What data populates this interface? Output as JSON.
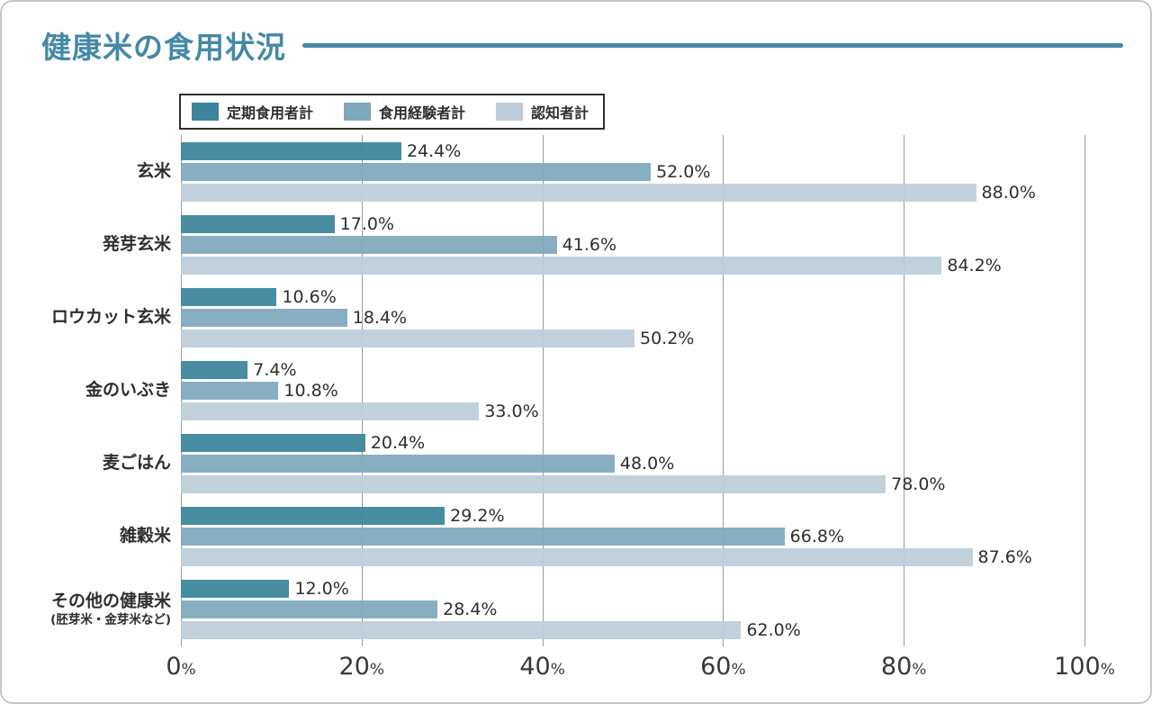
{
  "title": "健康米の食用状況",
  "legend": [
    {
      "label": "定期食用者計",
      "color": "#3b849b"
    },
    {
      "label": "食用経験者計",
      "color": "#7fa8bd"
    },
    {
      "label": "認知者計",
      "color": "#bccdd9"
    }
  ],
  "colors": {
    "accent": "#4489a6",
    "grid": "#9b9b9b",
    "text": "#2e2e2e"
  },
  "chart_data": {
    "type": "bar",
    "orientation": "horizontal",
    "title": "健康米の食用状況",
    "categories": [
      {
        "label": "玄米",
        "note": ""
      },
      {
        "label": "発芽玄米",
        "note": ""
      },
      {
        "label": "ロウカット玄米",
        "note": ""
      },
      {
        "label": "金のいぶき",
        "note": ""
      },
      {
        "label": "麦ごはん",
        "note": ""
      },
      {
        "label": "雑穀米",
        "note": ""
      },
      {
        "label": "その他の健康米",
        "note": "(胚芽米・金芽米など)"
      }
    ],
    "series": [
      {
        "name": "定期食用者計",
        "color": "#3b849b",
        "values": [
          24.4,
          17.0,
          10.6,
          7.4,
          20.4,
          29.2,
          12.0
        ]
      },
      {
        "name": "食用経験者計",
        "color": "#7fa8bd",
        "values": [
          52.0,
          41.6,
          18.4,
          10.8,
          48.0,
          66.8,
          28.4
        ]
      },
      {
        "name": "認知者計",
        "color": "#bccdd9",
        "values": [
          88.0,
          84.2,
          50.2,
          33.0,
          78.0,
          87.6,
          62.0
        ]
      }
    ],
    "value_suffix": "%",
    "value_decimals": 1,
    "xlim": [
      0,
      100
    ],
    "x_ticks": [
      "0%",
      "20%",
      "40%",
      "60%",
      "80%",
      "100%"
    ],
    "grid": true,
    "legend_position": "top-left"
  }
}
